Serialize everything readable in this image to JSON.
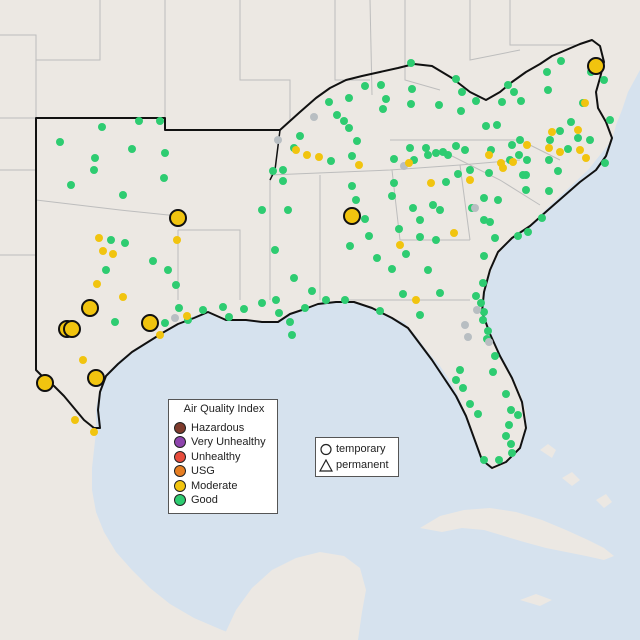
{
  "map": {
    "basemap": "grayscale-terrain",
    "colors": {
      "water": "#d6e2ee",
      "land": "#ece8e3",
      "region_outline": "#111111",
      "state_borders": "#bdbdbd"
    }
  },
  "aqi_legend": {
    "title": "Air Quality Index",
    "items": [
      {
        "label": "Hazardous",
        "color": "#7e3b2c"
      },
      {
        "label": "Very Unhealthy",
        "color": "#8e44ad"
      },
      {
        "label": "Unhealthy",
        "color": "#e74c3c"
      },
      {
        "label": "USG",
        "color": "#e67e22"
      },
      {
        "label": "Moderate",
        "color": "#f1c40f"
      },
      {
        "label": "Good",
        "color": "#2ecc71"
      }
    ]
  },
  "monitor_type_legend": {
    "items": [
      {
        "label": "temporary",
        "icon": "circle-icon"
      },
      {
        "label": "permanent",
        "icon": "triangle-icon"
      }
    ]
  },
  "monitor_colors": {
    "good": "#2ecc71",
    "moderate": "#f1c40f",
    "no_data": "#b8bec2"
  }
}
